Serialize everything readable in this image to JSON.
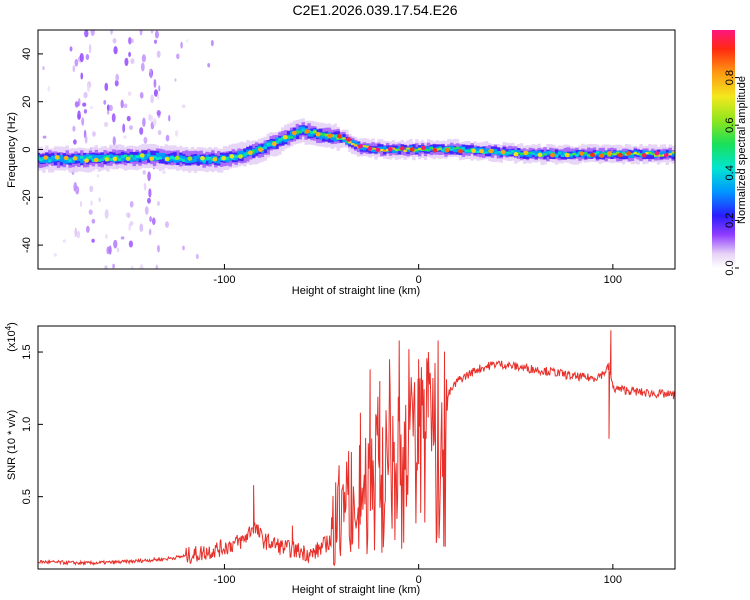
{
  "title": "C2E1.2026.039.17.54.E26",
  "colors": {
    "snr_line": "#e8302a",
    "axis": "#000000",
    "spectro_bg": "#ffffff"
  },
  "chart_data": [
    {
      "type": "heatmap",
      "name": "spectrogram",
      "xlabel": "Height of straight line (km)",
      "ylabel": "Frequency (Hz)",
      "xlim": [
        -196,
        132
      ],
      "ylim": [
        -50,
        50
      ],
      "x_ticks": [
        -100,
        0,
        100
      ],
      "x_tick_labels": [
        "-100",
        "0",
        "100"
      ],
      "y_ticks": [
        -40,
        -20,
        0,
        20,
        40
      ],
      "y_tick_labels": [
        "-40",
        "-20",
        "0",
        "20",
        "40"
      ],
      "ridge": {
        "description_points_x": [
          -196,
          -170,
          -140,
          -120,
          -100,
          -85,
          -70,
          -60,
          -50,
          -40,
          -30,
          -20,
          0,
          20,
          60,
          100,
          132
        ],
        "center_freq": [
          -4,
          -4,
          -3,
          -4,
          -4,
          -1,
          4,
          8,
          6,
          5,
          1,
          0,
          0,
          0,
          -2,
          -2,
          -2
        ],
        "amplitude": [
          0.45,
          0.45,
          0.45,
          0.4,
          0.45,
          0.5,
          0.5,
          0.55,
          0.6,
          0.6,
          0.85,
          0.8,
          0.65,
          0.55,
          0.5,
          0.6,
          0.75
        ]
      },
      "colorbar": {
        "label": "Normalized spectral amplitude",
        "range": [
          0,
          1
        ],
        "ticks": [
          0.0,
          0.2,
          0.4,
          0.6,
          0.8
        ],
        "tick_labels": [
          "0.0",
          "0.2",
          "0.4",
          "0.6",
          "0.8"
        ]
      }
    },
    {
      "type": "line",
      "name": "snr",
      "xlabel": "Height of straight line (km)",
      "ylabel": "SNR (10 * v/v)",
      "y_multiplier": "(x10",
      "y_multiplier_exp": "4",
      "y_multiplier_close": ")",
      "xlim": [
        -196,
        132
      ],
      "ylim": [
        0,
        1.68
      ],
      "x_ticks": [
        -100,
        0,
        100
      ],
      "x_tick_labels": [
        "-100",
        "0",
        "100"
      ],
      "y_ticks": [
        0.5,
        1.0,
        1.5
      ],
      "y_tick_labels": [
        "0.5",
        "1.0",
        "1.5"
      ],
      "envelope_x": [
        -196,
        -170,
        -150,
        -130,
        -115,
        -100,
        -90,
        -85,
        -80,
        -70,
        -60,
        -55,
        -45,
        -40,
        -35,
        -30,
        -25,
        -20,
        -15,
        -10,
        -5,
        0,
        5,
        10,
        15,
        20,
        30,
        40,
        50,
        60,
        70,
        80,
        90,
        95,
        98,
        100,
        105,
        115,
        125,
        132
      ],
      "envelope_y": [
        0.05,
        0.04,
        0.05,
        0.07,
        0.1,
        0.15,
        0.2,
        0.3,
        0.2,
        0.15,
        0.12,
        0.1,
        0.2,
        0.4,
        0.5,
        0.6,
        0.75,
        0.85,
        0.9,
        0.85,
        1.0,
        1.05,
        1.1,
        1.15,
        1.2,
        1.3,
        1.38,
        1.42,
        1.4,
        1.38,
        1.36,
        1.33,
        1.32,
        1.35,
        1.4,
        1.25,
        1.24,
        1.22,
        1.21,
        1.2
      ],
      "spikes_x": [
        -85,
        -65,
        -30,
        -25,
        -20,
        -15,
        -10,
        -5,
        0,
        5,
        10,
        98,
        99
      ],
      "spikes_y": [
        0.58,
        0.3,
        1.08,
        1.38,
        1.3,
        1.45,
        1.58,
        1.52,
        1.45,
        1.5,
        1.58,
        0.9,
        1.65
      ]
    }
  ]
}
